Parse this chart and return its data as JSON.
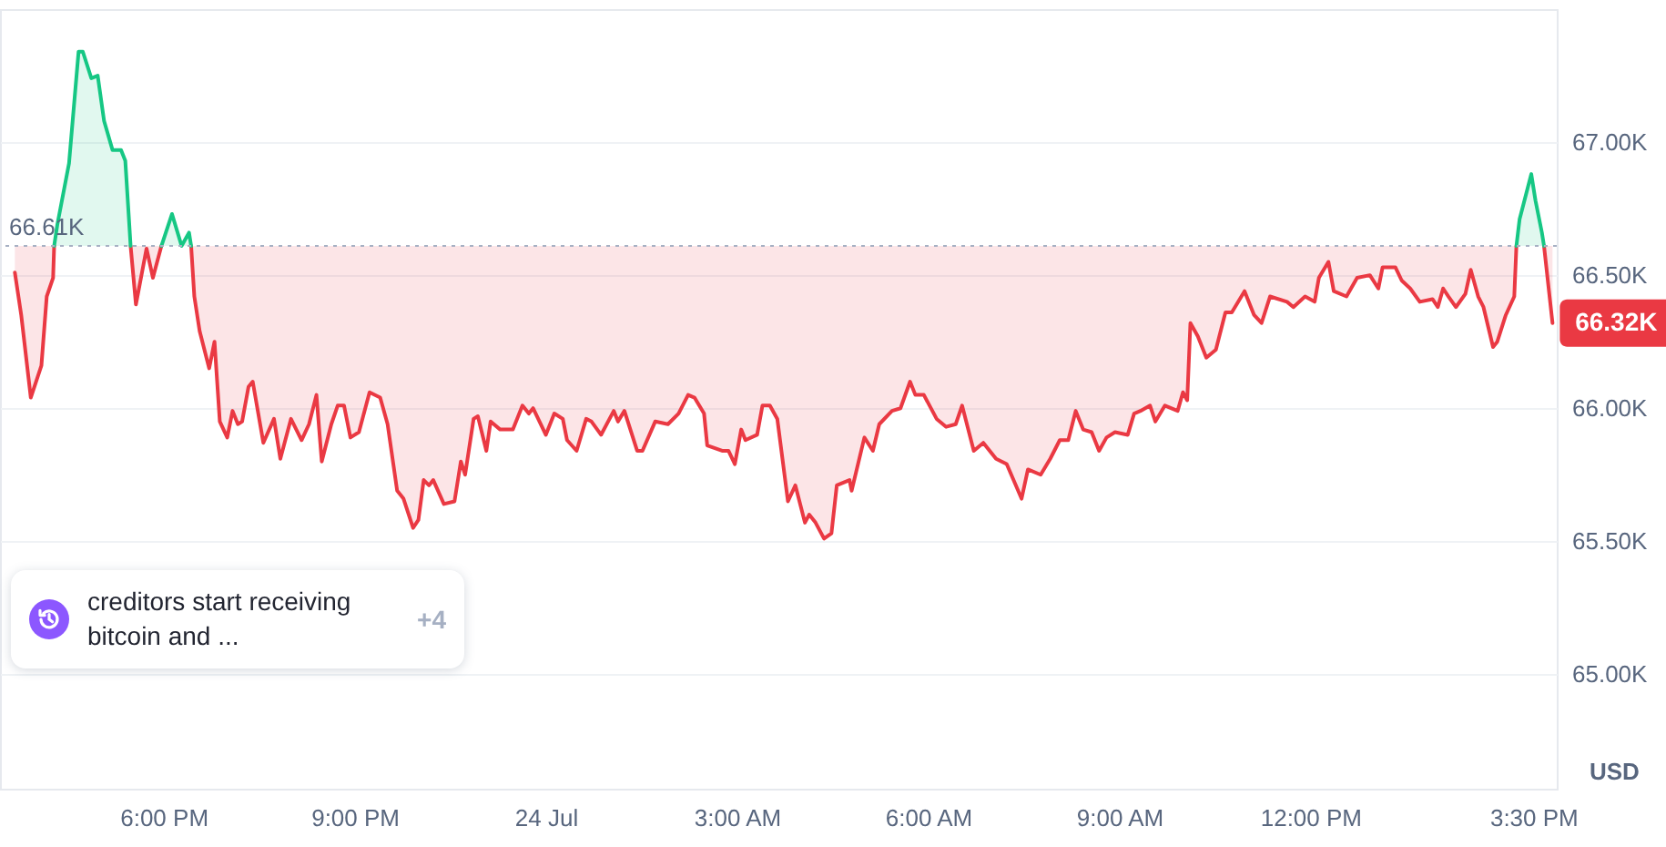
{
  "chart_data": {
    "type": "line",
    "ylabel": "USD",
    "grid": "y",
    "line_style": "solid",
    "xlim": [
      "--07-23T15:26",
      "--07-24T15:52"
    ],
    "ylim": [
      64570,
      67500
    ],
    "xticks": [
      {
        "value": "--07-23T18:00",
        "label": "6:00 PM"
      },
      {
        "value": "--07-23T21:00",
        "label": "9:00 PM"
      },
      {
        "value": "--07-24T00:00",
        "label": "24 Jul"
      },
      {
        "value": "--07-24T03:00",
        "label": "3:00 AM"
      },
      {
        "value": "--07-24T06:00",
        "label": "6:00 AM"
      },
      {
        "value": "--07-24T09:00",
        "label": "9:00 AM"
      },
      {
        "value": "--07-24T12:00",
        "label": "12:00 PM"
      },
      {
        "value": "--07-24T15:30",
        "label": "3:30 PM"
      }
    ],
    "yticks": [
      {
        "value": 65000,
        "label": "65.00K"
      },
      {
        "value": 65500,
        "label": "65.50K"
      },
      {
        "value": 66000,
        "label": "66.00K"
      },
      {
        "value": 66500,
        "label": "66.50K"
      },
      {
        "value": 67000,
        "label": "67.00K"
      }
    ],
    "ref_lines": [
      {
        "axis": "y",
        "value": 66610,
        "label": "66.61K",
        "color": "#a6b0c3",
        "line_style": "dotted"
      }
    ],
    "annotations": [
      {
        "text": "66.32K",
        "x": "--07-24T15:48",
        "y": 66320
      },
      "creditors start receiving bitcoin and ...",
      "+4"
    ],
    "x": [
      "--07-23T15:40",
      "--07-23T15:46",
      "--07-23T15:55",
      "--07-23T16:05",
      "--07-23T16:10",
      "--07-23T16:16",
      "--07-23T16:17",
      "--07-23T16:20",
      "--07-23T16:31",
      "--07-23T16:40",
      "--07-23T16:44",
      "--07-23T16:52",
      "--07-23T16:58",
      "--07-23T17:04",
      "--07-23T17:12",
      "--07-23T17:20",
      "--07-23T17:24",
      "--07-23T17:29",
      "--07-23T17:34",
      "--07-23T17:44",
      "--07-23T17:50",
      "--07-23T17:58",
      "--07-23T18:08",
      "--07-23T18:17",
      "--07-23T18:24",
      "--07-23T18:26",
      "--07-23T18:29",
      "--07-23T18:34",
      "--07-23T18:43",
      "--07-23T18:48",
      "--07-23T18:53",
      "--07-23T19:00",
      "--07-23T19:05",
      "--07-23T19:10",
      "--07-23T19:14",
      "--07-23T19:20",
      "--07-23T19:24",
      "--07-23T19:34",
      "--07-23T19:44",
      "--07-23T19:50",
      "--07-23T20:00",
      "--07-23T20:10",
      "--07-23T20:17",
      "--07-23T20:24",
      "--07-23T20:29",
      "--07-23T20:38",
      "--07-23T20:44",
      "--07-23T20:50",
      "--07-23T20:56",
      "--07-23T21:04",
      "--07-23T21:14",
      "--07-23T21:24",
      "--07-23T21:31",
      "--07-23T21:40",
      "--07-23T21:46",
      "--07-23T21:55",
      "--07-23T22:00",
      "--07-23T22:05",
      "--07-23T22:10",
      "--07-23T22:14",
      "--07-23T22:24",
      "--07-23T22:34",
      "--07-23T22:40",
      "--07-23T22:44",
      "--07-23T22:52",
      "--07-23T22:56",
      "--07-23T23:04",
      "--07-23T23:08",
      "--07-23T23:17",
      "--07-23T23:29",
      "--07-23T23:38",
      "--07-23T23:44",
      "--07-23T23:48",
      "--07-24T00:00",
      "--07-24T00:08",
      "--07-24T00:16",
      "--07-24T00:20",
      "--07-24T00:29",
      "--07-24T00:38",
      "--07-24T00:43",
      "--07-24T00:52",
      "--07-24T01:04",
      "--07-24T01:08",
      "--07-24T01:14",
      "--07-24T01:26",
      "--07-24T01:31",
      "--07-24T01:43",
      "--07-24T01:55",
      "--07-24T02:05",
      "--07-24T02:14",
      "--07-24T02:20",
      "--07-24T02:29",
      "--07-24T02:32",
      "--07-24T02:46",
      "--07-24T02:52",
      "--07-24T02:58",
      "--07-24T03:04",
      "--07-24T03:08",
      "--07-24T03:19",
      "--07-24T03:24",
      "--07-24T03:31",
      "--07-24T03:38",
      "--07-24T03:48",
      "--07-24T03:55",
      "--07-24T04:04",
      "--07-24T04:08",
      "--07-24T04:14",
      "--07-24T04:22",
      "--07-24T04:29",
      "--07-24T04:34",
      "--07-24T04:46",
      "--07-24T04:48",
      "--07-24T05:00",
      "--07-24T05:08",
      "--07-24T05:14",
      "--07-24T05:26",
      "--07-24T05:34",
      "--07-24T05:43",
      "--07-24T05:48",
      "--07-24T05:56",
      "--07-24T06:08",
      "--07-24T06:17",
      "--07-24T06:26",
      "--07-24T06:32",
      "--07-24T06:43",
      "--07-24T06:52",
      "--07-24T07:04",
      "--07-24T07:14",
      "--07-24T07:28",
      "--07-24T07:34",
      "--07-24T07:46",
      "--07-24T07:55",
      "--07-24T08:04",
      "--07-24T08:12",
      "--07-24T08:19",
      "--07-24T08:26",
      "--07-24T08:34",
      "--07-24T08:41",
      "--07-24T08:48",
      "--07-24T08:56",
      "--07-24T09:08",
      "--07-24T09:14",
      "--07-24T09:20",
      "--07-24T09:29",
      "--07-24T09:34",
      "--07-24T09:43",
      "--07-24T09:55",
      "--07-24T10:00",
      "--07-24T10:04",
      "--07-24T10:07",
      "--07-24T10:14",
      "--07-24T10:22",
      "--07-24T10:31",
      "--07-24T10:40",
      "--07-24T10:46",
      "--07-24T10:58",
      "--07-24T11:07",
      "--07-24T11:14",
      "--07-24T11:22",
      "--07-24T11:38",
      "--07-24T11:44",
      "--07-24T11:55",
      "--07-24T12:04",
      "--07-24T12:08",
      "--07-24T12:17",
      "--07-24T12:22",
      "--07-24T12:34",
      "--07-24T12:44",
      "--07-24T12:56",
      "--07-24T13:04",
      "--07-24T13:08",
      "--07-24T13:20",
      "--07-24T13:26",
      "--07-24T13:34",
      "--07-24T13:43",
      "--07-24T13:55",
      "--07-24T14:00",
      "--07-24T14:05",
      "--07-24T14:10",
      "--07-24T14:17",
      "--07-24T14:26",
      "--07-24T14:31",
      "--07-24T14:38",
      "--07-24T14:43",
      "--07-24T14:52",
      "--07-24T14:56",
      "--07-24T15:04",
      "--07-24T15:12",
      "--07-24T15:14",
      "--07-24T15:17",
      "--07-24T15:28",
      "--07-24T15:32",
      "--07-24T15:38",
      "--07-24T15:40",
      "--07-24T15:48"
    ],
    "series": [
      {
        "color": "#ea3943",
        "lower": [
          66510,
          66350,
          66040,
          66160,
          66420,
          66490,
          66610,
          null,
          null,
          null,
          null,
          null,
          null,
          null,
          null,
          null,
          null,
          66610,
          66390,
          66600,
          66490,
          66610,
          null,
          null,
          null,
          66610,
          66420,
          66290,
          66150,
          66250,
          65950,
          65890,
          65990,
          65940,
          65950,
          66080,
          66100,
          65870,
          65960,
          65810,
          65960,
          65880,
          65940,
          66050,
          65800,
          65940,
          66010,
          66010,
          65890,
          65910,
          66060,
          66040,
          65940,
          65690,
          65660,
          65550,
          65580,
          65730,
          65710,
          65730,
          65640,
          65650,
          65800,
          65750,
          65960,
          65970,
          65840,
          65950,
          65920,
          65920,
          66010,
          65980,
          66000,
          65900,
          65980,
          65960,
          65880,
          65840,
          65960,
          65950,
          65900,
          65990,
          65950,
          65990,
          65840,
          65840,
          65950,
          65940,
          65980,
          66050,
          66040,
          65980,
          65860,
          65840,
          65840,
          65790,
          65920,
          65880,
          65900,
          66010,
          66010,
          65960,
          65650,
          65710,
          65570,
          65600,
          65570,
          65510,
          65530,
          65710,
          65730,
          65690,
          65890,
          65840,
          65940,
          65990,
          66000,
          66100,
          66050,
          66050,
          65960,
          65930,
          65940,
          66010,
          65840,
          65870,
          65810,
          65790,
          65660,
          65770,
          65750,
          65810,
          65880,
          65880,
          65990,
          65920,
          65910,
          65840,
          65890,
          65910,
          65900,
          65980,
          65990,
          66010,
          65950,
          66010,
          65990,
          66060,
          66030,
          66320,
          66270,
          66190,
          66220,
          66360,
          66360,
          66440,
          66350,
          66320,
          66420,
          66400,
          66380,
          66420,
          66400,
          66490,
          66550,
          66440,
          66420,
          66490,
          66500,
          66450,
          66530,
          66530,
          66480,
          66450,
          66400,
          66410,
          66380,
          66450,
          66420,
          66380,
          66430,
          66520,
          66420,
          66380,
          66230,
          66250,
          66350,
          66420,
          66610,
          null,
          null,
          null,
          null,
          66610,
          66320
        ],
        "upper": [
          66610,
          66610,
          66610,
          66610,
          66610,
          66610,
          66610,
          null,
          null,
          null,
          null,
          null,
          null,
          null,
          null,
          null,
          null,
          66610,
          66610,
          66610,
          66610,
          66610,
          null,
          null,
          null,
          66610,
          66610,
          66610,
          66610,
          66610,
          66610,
          66610,
          66610,
          66610,
          66610,
          66610,
          66610,
          66610,
          66610,
          66610,
          66610,
          66610,
          66610,
          66610,
          66610,
          66610,
          66610,
          66610,
          66610,
          66610,
          66610,
          66610,
          66610,
          66610,
          66610,
          66610,
          66610,
          66610,
          66610,
          66610,
          66610,
          66610,
          66610,
          66610,
          66610,
          66610,
          66610,
          66610,
          66610,
          66610,
          66610,
          66610,
          66610,
          66610,
          66610,
          66610,
          66610,
          66610,
          66610,
          66610,
          66610,
          66610,
          66610,
          66610,
          66610,
          66610,
          66610,
          66610,
          66610,
          66610,
          66610,
          66610,
          66610,
          66610,
          66610,
          66610,
          66610,
          66610,
          66610,
          66610,
          66610,
          66610,
          66610,
          66610,
          66610,
          66610,
          66610,
          66610,
          66610,
          66610,
          66610,
          66610,
          66610,
          66610,
          66610,
          66610,
          66610,
          66610,
          66610,
          66610,
          66610,
          66610,
          66610,
          66610,
          66610,
          66610,
          66610,
          66610,
          66610,
          66610,
          66610,
          66610,
          66610,
          66610,
          66610,
          66610,
          66610,
          66610,
          66610,
          66610,
          66610,
          66610,
          66610,
          66610,
          66610,
          66610,
          66610,
          66610,
          66610,
          66610,
          66610,
          66610,
          66610,
          66610,
          66610,
          66610,
          66610,
          66610,
          66610,
          66610,
          66610,
          66610,
          66610,
          66610,
          66610,
          66610,
          66610,
          66610,
          66610,
          66610,
          66610,
          66610,
          66610,
          66610,
          66610,
          66610,
          66610,
          66610,
          66610,
          66610,
          66610,
          66610,
          66610,
          66610,
          66610,
          66610,
          66610,
          66610,
          66610,
          null,
          null,
          null,
          null,
          66610,
          66610
        ],
        "values": [
          66510,
          66350,
          66040,
          66160,
          66420,
          66490,
          66610,
          null,
          null,
          null,
          null,
          null,
          null,
          null,
          null,
          null,
          null,
          66610,
          66390,
          66600,
          66490,
          66610,
          null,
          null,
          null,
          66610,
          66420,
          66290,
          66150,
          66250,
          65950,
          65890,
          65990,
          65940,
          65950,
          66080,
          66100,
          65870,
          65960,
          65810,
          65960,
          65880,
          65940,
          66050,
          65800,
          65940,
          66010,
          66010,
          65890,
          65910,
          66060,
          66040,
          65940,
          65690,
          65660,
          65550,
          65580,
          65730,
          65710,
          65730,
          65640,
          65650,
          65800,
          65750,
          65960,
          65970,
          65840,
          65950,
          65920,
          65920,
          66010,
          65980,
          66000,
          65900,
          65980,
          65960,
          65880,
          65840,
          65960,
          65950,
          65900,
          65990,
          65950,
          65990,
          65840,
          65840,
          65950,
          65940,
          65980,
          66050,
          66040,
          65980,
          65860,
          65840,
          65840,
          65790,
          65920,
          65880,
          65900,
          66010,
          66010,
          65960,
          65650,
          65710,
          65570,
          65600,
          65570,
          65510,
          65530,
          65710,
          65730,
          65690,
          65890,
          65840,
          65940,
          65990,
          66000,
          66100,
          66050,
          66050,
          65960,
          65930,
          65940,
          66010,
          65840,
          65870,
          65810,
          65790,
          65660,
          65770,
          65750,
          65810,
          65880,
          65880,
          65990,
          65920,
          65910,
          65840,
          65890,
          65910,
          65900,
          65980,
          65990,
          66010,
          65950,
          66010,
          65990,
          66060,
          66030,
          66320,
          66270,
          66190,
          66220,
          66360,
          66360,
          66440,
          66350,
          66320,
          66420,
          66400,
          66380,
          66420,
          66400,
          66490,
          66550,
          66440,
          66420,
          66490,
          66500,
          66450,
          66530,
          66530,
          66480,
          66450,
          66400,
          66410,
          66380,
          66450,
          66420,
          66380,
          66430,
          66520,
          66420,
          66380,
          66230,
          66250,
          66350,
          66420,
          66610,
          null,
          null,
          null,
          null,
          66610,
          66320
        ]
      },
      {
        "color": "#16c784",
        "lower": [
          null,
          null,
          null,
          null,
          null,
          null,
          66610,
          66610,
          66610,
          66610,
          66610,
          66610,
          66610,
          66610,
          66610,
          66610,
          66610,
          66610,
          null,
          null,
          null,
          66610,
          66610,
          66610,
          66610,
          66610,
          null,
          null,
          null,
          null,
          null,
          null,
          null,
          null,
          null,
          null,
          null,
          null,
          null,
          null,
          null,
          null,
          null,
          null,
          null,
          null,
          null,
          null,
          null,
          null,
          null,
          null,
          null,
          null,
          null,
          null,
          null,
          null,
          null,
          null,
          null,
          null,
          null,
          null,
          null,
          null,
          null,
          null,
          null,
          null,
          null,
          null,
          null,
          null,
          null,
          null,
          null,
          null,
          null,
          null,
          null,
          null,
          null,
          null,
          null,
          null,
          null,
          null,
          null,
          null,
          null,
          null,
          null,
          null,
          null,
          null,
          null,
          null,
          null,
          null,
          null,
          null,
          null,
          null,
          null,
          null,
          null,
          null,
          null,
          null,
          null,
          null,
          null,
          null,
          null,
          null,
          null,
          null,
          null,
          null,
          null,
          null,
          null,
          null,
          null,
          null,
          null,
          null,
          null,
          null,
          null,
          null,
          null,
          null,
          null,
          null,
          null,
          null,
          null,
          null,
          null,
          null,
          null,
          null,
          null,
          null,
          null,
          null,
          null,
          null,
          null,
          null,
          null,
          null,
          null,
          null,
          null,
          null,
          null,
          null,
          null,
          null,
          null,
          null,
          null,
          null,
          null,
          null,
          null,
          null,
          null,
          null,
          null,
          null,
          null,
          null,
          null,
          null,
          null,
          null,
          null,
          null,
          null,
          null,
          null,
          null,
          null,
          null,
          66610,
          66610,
          66610,
          66610,
          66610,
          66610,
          null
        ],
        "upper": [
          null,
          null,
          null,
          null,
          null,
          null,
          66610,
          66690,
          66920,
          67340,
          67340,
          67240,
          67250,
          67080,
          66970,
          66970,
          66930,
          66610,
          null,
          null,
          null,
          66610,
          66730,
          66610,
          66660,
          66610,
          null,
          null,
          null,
          null,
          null,
          null,
          null,
          null,
          null,
          null,
          null,
          null,
          null,
          null,
          null,
          null,
          null,
          null,
          null,
          null,
          null,
          null,
          null,
          null,
          null,
          null,
          null,
          null,
          null,
          null,
          null,
          null,
          null,
          null,
          null,
          null,
          null,
          null,
          null,
          null,
          null,
          null,
          null,
          null,
          null,
          null,
          null,
          null,
          null,
          null,
          null,
          null,
          null,
          null,
          null,
          null,
          null,
          null,
          null,
          null,
          null,
          null,
          null,
          null,
          null,
          null,
          null,
          null,
          null,
          null,
          null,
          null,
          null,
          null,
          null,
          null,
          null,
          null,
          null,
          null,
          null,
          null,
          null,
          null,
          null,
          null,
          null,
          null,
          null,
          null,
          null,
          null,
          null,
          null,
          null,
          null,
          null,
          null,
          null,
          null,
          null,
          null,
          null,
          null,
          null,
          null,
          null,
          null,
          null,
          null,
          null,
          null,
          null,
          null,
          null,
          null,
          null,
          null,
          null,
          null,
          null,
          null,
          null,
          null,
          null,
          null,
          null,
          null,
          null,
          null,
          null,
          null,
          null,
          null,
          null,
          null,
          null,
          null,
          null,
          null,
          null,
          null,
          null,
          null,
          null,
          null,
          null,
          null,
          null,
          null,
          null,
          null,
          null,
          null,
          null,
          null,
          null,
          null,
          null,
          null,
          null,
          null,
          66610,
          66710,
          66880,
          66780,
          66660,
          66610,
          null
        ],
        "values": [
          null,
          null,
          null,
          null,
          null,
          null,
          66610,
          66690,
          66920,
          67340,
          67340,
          67240,
          67250,
          67080,
          66970,
          66970,
          66930,
          66610,
          null,
          null,
          null,
          66610,
          66730,
          66610,
          66660,
          66610,
          null,
          null,
          null,
          null,
          null,
          null,
          null,
          null,
          null,
          null,
          null,
          null,
          null,
          null,
          null,
          null,
          null,
          null,
          null,
          null,
          null,
          null,
          null,
          null,
          null,
          null,
          null,
          null,
          null,
          null,
          null,
          null,
          null,
          null,
          null,
          null,
          null,
          null,
          null,
          null,
          null,
          null,
          null,
          null,
          null,
          null,
          null,
          null,
          null,
          null,
          null,
          null,
          null,
          null,
          null,
          null,
          null,
          null,
          null,
          null,
          null,
          null,
          null,
          null,
          null,
          null,
          null,
          null,
          null,
          null,
          null,
          null,
          null,
          null,
          null,
          null,
          null,
          null,
          null,
          null,
          null,
          null,
          null,
          null,
          null,
          null,
          null,
          null,
          null,
          null,
          null,
          null,
          null,
          null,
          null,
          null,
          null,
          null,
          null,
          null,
          null,
          null,
          null,
          null,
          null,
          null,
          null,
          null,
          null,
          null,
          null,
          null,
          null,
          null,
          null,
          null,
          null,
          null,
          null,
          null,
          null,
          null,
          null,
          null,
          null,
          null,
          null,
          null,
          null,
          null,
          null,
          null,
          null,
          null,
          null,
          null,
          null,
          null,
          null,
          null,
          null,
          null,
          null,
          null,
          null,
          null,
          null,
          null,
          null,
          null,
          null,
          null,
          null,
          null,
          null,
          null,
          null,
          null,
          null,
          null,
          null,
          null,
          66610,
          66710,
          66880,
          66780,
          66660,
          66610,
          null
        ]
      }
    ]
  }
}
